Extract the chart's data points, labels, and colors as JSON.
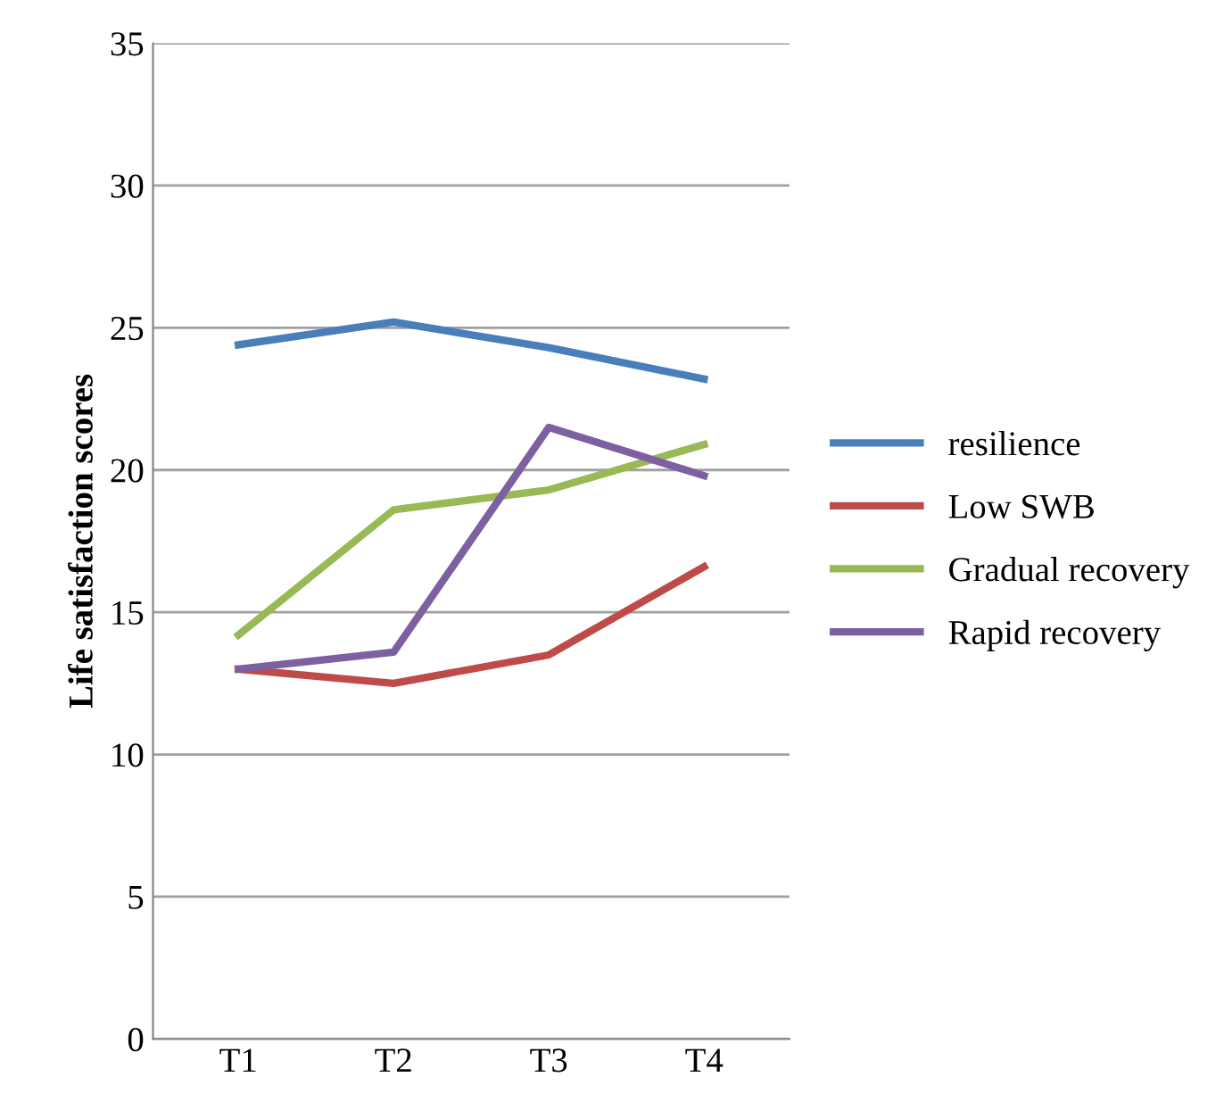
{
  "chart_data": {
    "type": "line",
    "ylabel": "Life satisfaction scores",
    "categories": [
      "T1",
      "T2",
      "T3",
      "T4"
    ],
    "series": [
      {
        "name": "resilience",
        "color": "#4a7ebb",
        "values": [
          24.4,
          25.2,
          24.3,
          23.2
        ]
      },
      {
        "name": "Low SWB",
        "color": "#be4b48",
        "values": [
          13.0,
          12.5,
          13.5,
          16.6
        ]
      },
      {
        "name": "Gradual recovery",
        "color": "#98b954",
        "values": [
          14.2,
          18.6,
          19.3,
          20.9
        ]
      },
      {
        "name": "Rapid recovery",
        "color": "#7d60a0",
        "values": [
          13.0,
          13.6,
          21.5,
          19.8
        ]
      }
    ],
    "ylim": [
      0,
      35
    ],
    "yticks": [
      0,
      5,
      10,
      15,
      20,
      25,
      30,
      35
    ],
    "grid": "y",
    "legend": "right",
    "marker": "none",
    "line_style": "solid"
  }
}
